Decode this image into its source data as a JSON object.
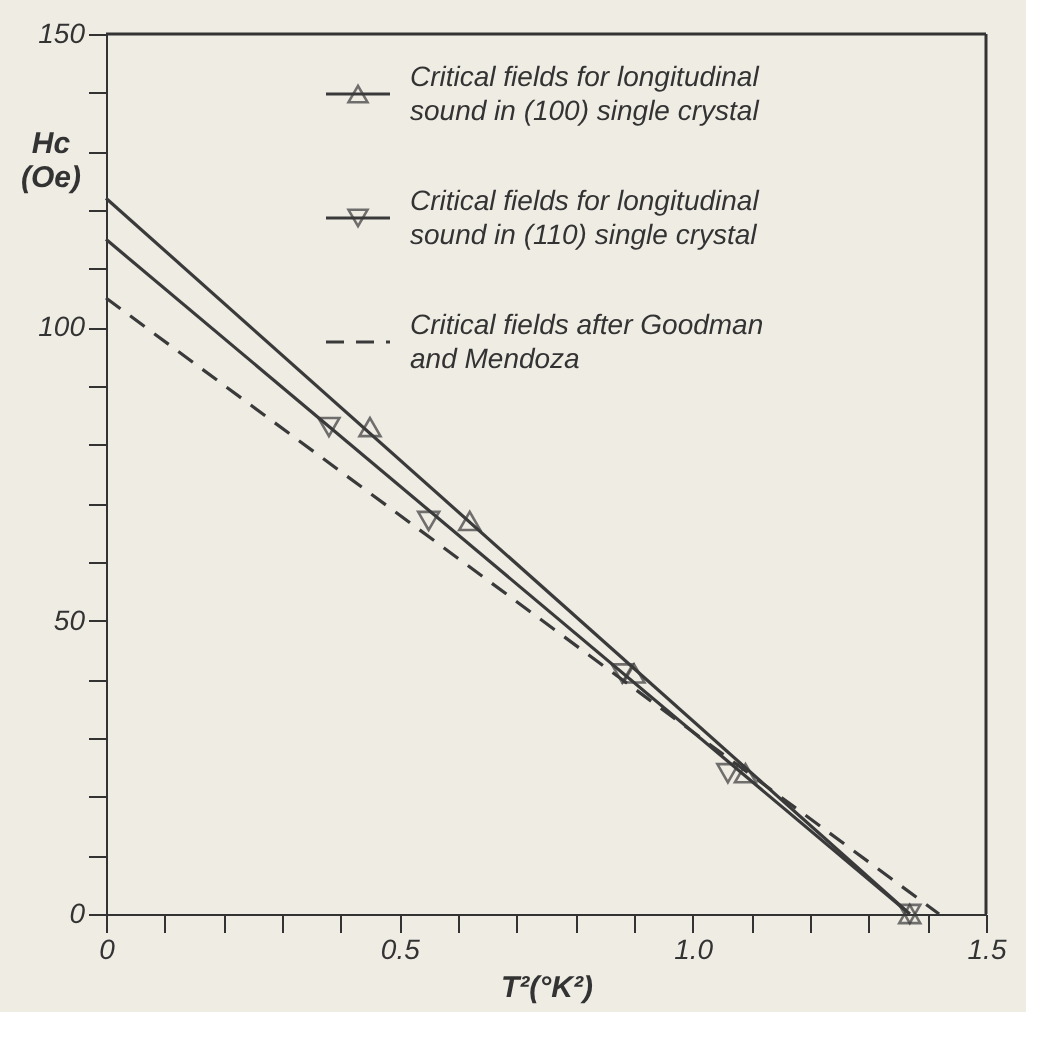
{
  "chart_data": {
    "type": "line",
    "xlabel": "T²(°K²)",
    "ylabel": "Hc (Oe)",
    "xlim": [
      0,
      1.5
    ],
    "ylim": [
      0,
      150
    ],
    "xticks": [
      {
        "value": 0,
        "label": "0"
      },
      {
        "value": 0.1,
        "label": null
      },
      {
        "value": 0.2,
        "label": null
      },
      {
        "value": 0.3,
        "label": null
      },
      {
        "value": 0.4,
        "label": null
      },
      {
        "value": 0.5,
        "label": "0.5"
      },
      {
        "value": 0.6,
        "label": null
      },
      {
        "value": 0.7,
        "label": null
      },
      {
        "value": 0.8,
        "label": null
      },
      {
        "value": 0.9,
        "label": null
      },
      {
        "value": 1.0,
        "label": "1.0"
      },
      {
        "value": 1.1,
        "label": null
      },
      {
        "value": 1.2,
        "label": null
      },
      {
        "value": 1.3,
        "label": null
      },
      {
        "value": 1.4,
        "label": null
      },
      {
        "value": 1.5,
        "label": "1.5"
      }
    ],
    "yticks": [
      0,
      {
        "value": 10,
        "label": null
      },
      {
        "value": 20,
        "label": null
      },
      {
        "value": 30,
        "label": null
      },
      {
        "value": 40,
        "label": null
      },
      50,
      {
        "value": 60,
        "label": null
      },
      {
        "value": 70,
        "label": null
      },
      {
        "value": 80,
        "label": null
      },
      {
        "value": 90,
        "label": null
      },
      100,
      {
        "value": 110,
        "label": null
      },
      {
        "value": 120,
        "label": null
      },
      {
        "value": 130,
        "label": null
      },
      {
        "value": 140,
        "label": null
      },
      150
    ],
    "grid": false,
    "legend": "top right",
    "series": [
      {
        "color": "#3a3a3a",
        "x": [
          0,
          1.37
        ],
        "values": [
          122,
          0
        ],
        "line_style": "solid"
      },
      {
        "color": "#3a3a3a",
        "x": [
          0,
          1.37
        ],
        "values": [
          115,
          0
        ],
        "line_style": "solid"
      },
      {
        "name": "Critical fields for longitudinal sound in (100) single crystal",
        "type": "scatter",
        "color": "#3a3a3a",
        "x": [
          0.45,
          0.62,
          0.9,
          1.09,
          1.37
        ],
        "values": [
          83,
          67,
          41,
          24,
          0
        ],
        "marker": "triangle"
      },
      {
        "name": "Critical fields for longitudinal sound in (110) single crystal",
        "type": "scatter",
        "color": "#3a3a3a",
        "x": [
          0.38,
          0.55,
          0.88,
          1.06,
          1.37
        ],
        "values": [
          83,
          67,
          41,
          24,
          0
        ],
        "marker": "triangle-down"
      },
      {
        "name": "Critical fields after Goodman and Mendoza",
        "type": "line",
        "color": "#3a3a3a",
        "x": [
          0,
          1.42
        ],
        "values": [
          105,
          0
        ],
        "marker": "none",
        "line_style": "dashed"
      }
    ]
  }
}
